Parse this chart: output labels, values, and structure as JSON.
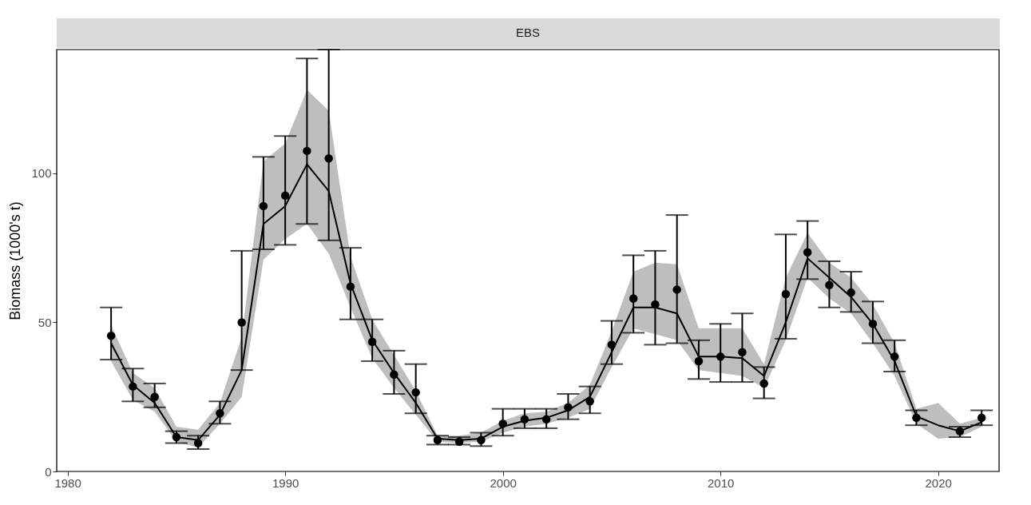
{
  "chart_data": {
    "type": "line",
    "title": "EBS",
    "ylabel": "Biomass (1000's t)",
    "xlim": [
      1979.5,
      2022.8
    ],
    "xticks": [
      1980,
      1990,
      2000,
      2010,
      2020
    ],
    "ylim": [
      0,
      141.5
    ],
    "yticks": [
      0,
      50,
      100
    ],
    "grid": false,
    "series": [
      {
        "color": "#000000",
        "x": [
          1982,
          1983,
          1984,
          1985,
          1986,
          1987,
          1988,
          1989,
          1990,
          1991,
          1992,
          1993,
          1994,
          1995,
          1996,
          1997,
          1998,
          1999,
          2000,
          2001,
          2002,
          2003,
          2004,
          2005,
          2006,
          2007,
          2008,
          2009,
          2010,
          2011,
          2012,
          2013,
          2014,
          2015,
          2016,
          2017,
          2018,
          2019,
          2020,
          2021,
          2022
        ],
        "values": [
          43,
          29,
          23,
          11.5,
          10.5,
          19,
          34,
          83,
          89,
          103,
          94,
          63,
          44,
          33,
          23,
          11,
          10.5,
          11,
          15,
          17,
          18,
          20.5,
          25,
          40,
          55,
          55,
          53,
          38.5,
          38.5,
          38,
          32,
          50,
          71.5,
          65,
          58.5,
          49.5,
          37,
          18.5,
          15.5,
          13.5,
          16.5
        ],
        "lower": [
          37,
          24,
          20,
          10,
          8,
          16,
          25,
          71,
          78,
          83,
          73,
          55,
          38,
          28,
          19,
          10,
          9.5,
          10,
          13,
          15,
          16,
          18,
          21,
          35,
          48,
          46,
          44,
          34,
          33,
          32,
          28,
          44,
          65,
          58,
          53,
          43,
          32,
          16,
          11,
          11.5,
          15
        ],
        "upper": [
          49,
          33,
          28,
          15,
          14,
          23,
          45,
          104,
          110,
          128,
          121,
          72,
          51,
          39,
          27,
          12,
          12,
          13,
          17,
          19.5,
          20,
          23,
          29,
          47,
          67,
          70,
          69.5,
          48,
          48,
          48,
          36,
          65,
          80,
          70,
          65,
          56,
          43,
          21,
          23,
          16,
          18
        ]
      },
      {
        "type": "scatter",
        "color": "#000000",
        "marker": "circle",
        "x": [
          1982,
          1983,
          1984,
          1985,
          1986,
          1987,
          1988,
          1989,
          1990,
          1991,
          1992,
          1993,
          1994,
          1995,
          1996,
          1997,
          1998,
          1999,
          2000,
          2001,
          2002,
          2003,
          2004,
          2005,
          2006,
          2007,
          2008,
          2009,
          2010,
          2011,
          2012,
          2013,
          2014,
          2015,
          2016,
          2017,
          2018,
          2019,
          2021,
          2022
        ],
        "values": [
          45.5,
          28.5,
          25,
          11.5,
          9.5,
          19.5,
          50,
          89,
          92.5,
          107.5,
          105,
          62,
          43.5,
          32.5,
          26.5,
          10.5,
          10,
          10.5,
          16,
          17.5,
          17.5,
          21.5,
          23.5,
          42.5,
          58,
          56,
          61,
          37,
          38.5,
          40,
          29.5,
          59.5,
          73.5,
          62.5,
          60,
          49.5,
          38.5,
          18,
          13.5,
          18
        ],
        "errors": [
          [
            37.5,
            55
          ],
          [
            23.5,
            34.5
          ],
          [
            21.5,
            29.5
          ],
          [
            9.5,
            13.5
          ],
          [
            7.5,
            12
          ],
          [
            16,
            23.5
          ],
          [
            34,
            74
          ],
          [
            74.5,
            105.5
          ],
          [
            76,
            112.5
          ],
          [
            83,
            138.5
          ],
          [
            77.5,
            141.5
          ],
          [
            51,
            75
          ],
          [
            37,
            51
          ],
          [
            26,
            40.5
          ],
          [
            19.5,
            36
          ],
          [
            9,
            12
          ],
          [
            9,
            11.5
          ],
          [
            8.5,
            13
          ],
          [
            12,
            21
          ],
          [
            14.5,
            21
          ],
          [
            14.5,
            21
          ],
          [
            17.5,
            26
          ],
          [
            19.5,
            28.5
          ],
          [
            36,
            50.5
          ],
          [
            46.5,
            72.5
          ],
          [
            42.5,
            74
          ],
          [
            43,
            86
          ],
          [
            31,
            44
          ],
          [
            30,
            49.5
          ],
          [
            30,
            53
          ],
          [
            24.5,
            35
          ],
          [
            44.5,
            79.5
          ],
          [
            64.5,
            84
          ],
          [
            55,
            70.5
          ],
          [
            53.5,
            67
          ],
          [
            43,
            57
          ],
          [
            33.5,
            44
          ],
          [
            15.5,
            20.5
          ],
          [
            11.5,
            15
          ],
          [
            15.5,
            20.5
          ]
        ]
      }
    ]
  }
}
